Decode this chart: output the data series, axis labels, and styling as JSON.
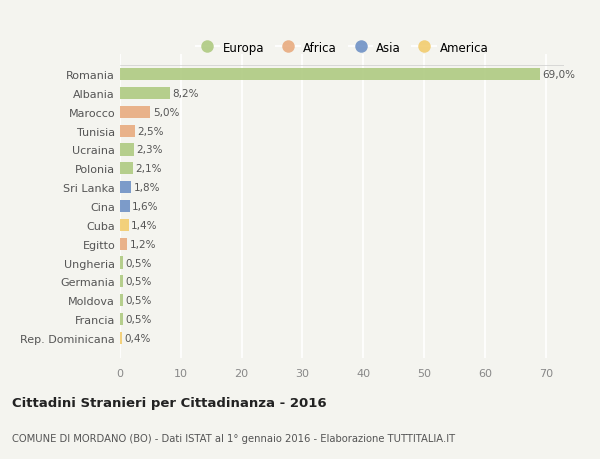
{
  "countries": [
    "Romania",
    "Albania",
    "Marocco",
    "Tunisia",
    "Ucraina",
    "Polonia",
    "Sri Lanka",
    "Cina",
    "Cuba",
    "Egitto",
    "Ungheria",
    "Germania",
    "Moldova",
    "Francia",
    "Rep. Dominicana"
  ],
  "values": [
    69.0,
    8.2,
    5.0,
    2.5,
    2.3,
    2.1,
    1.8,
    1.6,
    1.4,
    1.2,
    0.5,
    0.5,
    0.5,
    0.5,
    0.4
  ],
  "labels": [
    "69,0%",
    "8,2%",
    "5,0%",
    "2,5%",
    "2,3%",
    "2,1%",
    "1,8%",
    "1,6%",
    "1,4%",
    "1,2%",
    "0,5%",
    "0,5%",
    "0,5%",
    "0,5%",
    "0,4%"
  ],
  "continents": [
    "Europa",
    "Europa",
    "Africa",
    "Africa",
    "Europa",
    "Europa",
    "Asia",
    "Asia",
    "America",
    "Africa",
    "Europa",
    "Europa",
    "Europa",
    "Europa",
    "America"
  ],
  "colors": {
    "Europa": "#adc97e",
    "Africa": "#e8a97c",
    "Asia": "#6b8fc4",
    "America": "#f2cb6b"
  },
  "background_color": "#f4f4ef",
  "title": "Cittadini Stranieri per Cittadinanza - 2016",
  "subtitle": "COMUNE DI MORDANO (BO) - Dati ISTAT al 1° gennaio 2016 - Elaborazione TUTTITALIA.IT",
  "xlim": [
    0,
    73
  ],
  "xticks": [
    0,
    10,
    20,
    30,
    40,
    50,
    60,
    70
  ],
  "grid_color": "#ffffff",
  "bar_height": 0.65,
  "legend_order": [
    "Europa",
    "Africa",
    "Asia",
    "America"
  ]
}
